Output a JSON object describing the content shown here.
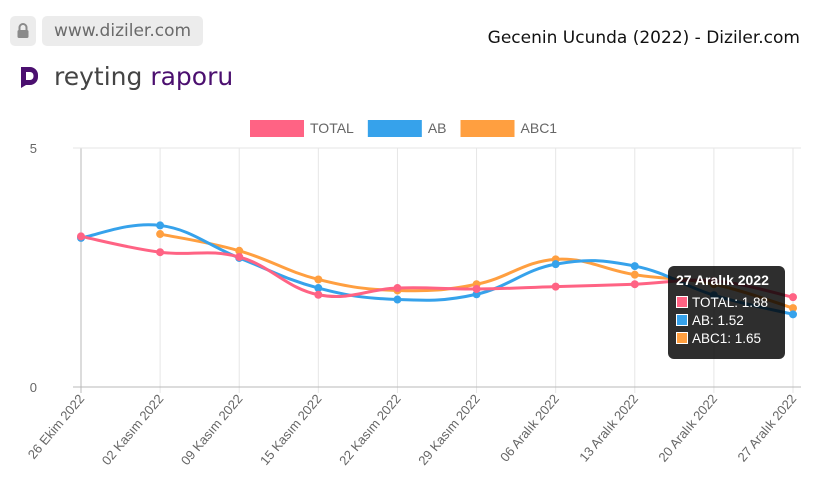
{
  "browser": {
    "url": "www.diziler.com",
    "page_title": "Gecenin Ucunda (2022) - Diziler.com"
  },
  "heading": {
    "word1": "reyting",
    "word2": "raporu"
  },
  "tooltip": {
    "title": "27 Aralık 2022",
    "rows": [
      "TOTAL: 1.88",
      "AB: 1.52",
      "ABC1: 1.65"
    ]
  },
  "chart_data": {
    "type": "line",
    "categories": [
      "26 Ekim 2022",
      "02 Kasım 2022",
      "09 Kasım 2022",
      "15 Kasım 2022",
      "22 Kasım 2022",
      "29 Kasım 2022",
      "06 Aralık 2022",
      "13 Aralık 2022",
      "20 Aralık 2022",
      "27 Aralık 2022"
    ],
    "series": [
      {
        "name": "TOTAL",
        "color": "#ff6384",
        "values": [
          3.15,
          2.82,
          2.72,
          1.93,
          2.07,
          2.05,
          2.1,
          2.15,
          2.22,
          1.88
        ]
      },
      {
        "name": "AB",
        "color": "#36a2eb",
        "values": [
          3.12,
          3.38,
          2.7,
          2.07,
          1.83,
          1.94,
          2.57,
          2.53,
          1.92,
          1.52
        ]
      },
      {
        "name": "ABC1",
        "color": "#ff9f40",
        "values": [
          null,
          3.2,
          2.85,
          2.25,
          2.02,
          2.15,
          2.67,
          2.35,
          2.15,
          1.65
        ]
      }
    ],
    "ylim": [
      0,
      5
    ],
    "yticks": [
      0,
      5
    ],
    "grid": true,
    "legend": "top"
  }
}
